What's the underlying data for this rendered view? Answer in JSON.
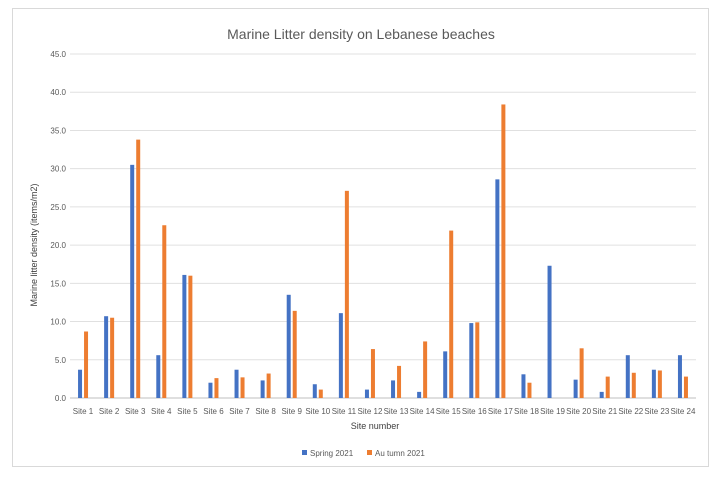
{
  "chart_data": {
    "type": "bar",
    "title": "Marine Litter density on Lebanese beaches",
    "xlabel": "Site number",
    "ylabel": "Marine litter density (items/m2)",
    "ylim": [
      0,
      45
    ],
    "yticks": [
      "0.0",
      "5.0",
      "10.0",
      "15.0",
      "20.0",
      "25.0",
      "30.0",
      "35.0",
      "40.0",
      "45.0"
    ],
    "grid": true,
    "legend_position": "bottom",
    "categories": [
      "Site 1",
      "Site 2",
      "Site 3",
      "Site 4",
      "Site 5",
      "Site 6",
      "Site 7",
      "Site 8",
      "Site 9",
      "Site 10",
      "Site 11",
      "Site 12",
      "Site 13",
      "Site 14",
      "Site 15",
      "Site 16",
      "Site 17",
      "Site 18",
      "Site 19",
      "Site 20",
      "Site 21",
      "Site 22",
      "Site 23",
      "Site 24"
    ],
    "series": [
      {
        "name": "Spring 2021",
        "color": "#4472c4",
        "values": [
          3.7,
          10.7,
          30.5,
          5.6,
          16.1,
          2.0,
          3.7,
          2.3,
          13.5,
          1.8,
          11.1,
          1.1,
          2.3,
          0.8,
          6.1,
          9.8,
          28.6,
          3.1,
          17.3,
          2.4,
          0.8,
          5.6,
          3.7,
          5.6
        ]
      },
      {
        "name": "Autumn 2021",
        "color": "#ed7d31",
        "values": [
          8.7,
          10.5,
          33.8,
          22.6,
          16.0,
          2.6,
          2.7,
          3.2,
          11.4,
          1.1,
          27.1,
          6.4,
          4.2,
          7.4,
          21.9,
          9.9,
          38.4,
          2.0,
          0,
          6.5,
          2.8,
          3.3,
          3.6,
          2.8
        ]
      }
    ],
    "legend_labels": [
      "Spring 2021",
      "Au tumn 2021"
    ]
  }
}
